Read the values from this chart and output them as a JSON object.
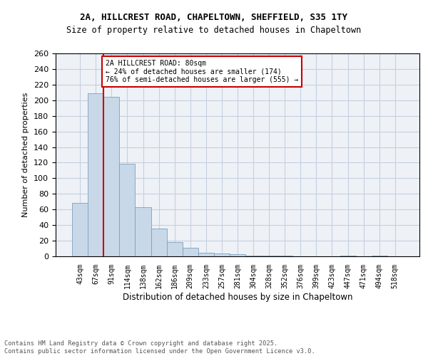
{
  "title_line1": "2A, HILLCREST ROAD, CHAPELTOWN, SHEFFIELD, S35 1TY",
  "title_line2": "Size of property relative to detached houses in Chapeltown",
  "xlabel": "Distribution of detached houses by size in Chapeltown",
  "ylabel": "Number of detached properties",
  "bar_color": "#c8d8e8",
  "bar_edge_color": "#7aa0c0",
  "categories": [
    "43sqm",
    "67sqm",
    "91sqm",
    "114sqm",
    "138sqm",
    "162sqm",
    "186sqm",
    "209sqm",
    "233sqm",
    "257sqm",
    "281sqm",
    "304sqm",
    "328sqm",
    "352sqm",
    "376sqm",
    "399sqm",
    "423sqm",
    "447sqm",
    "471sqm",
    "494sqm",
    "518sqm"
  ],
  "values": [
    68,
    209,
    204,
    119,
    63,
    36,
    18,
    11,
    5,
    4,
    3,
    1,
    1,
    1,
    0,
    0,
    0,
    1,
    0,
    1,
    0
  ],
  "ylim": [
    0,
    260
  ],
  "yticks": [
    0,
    20,
    40,
    60,
    80,
    100,
    120,
    140,
    160,
    180,
    200,
    220,
    240,
    260
  ],
  "vline_x": 1.5,
  "vline_color": "#cc0000",
  "annotation_text": "2A HILLCREST ROAD: 80sqm\n← 24% of detached houses are smaller (174)\n76% of semi-detached houses are larger (555) →",
  "annotation_box_color": "#cc0000",
  "footer_line1": "Contains HM Land Registry data © Crown copyright and database right 2025.",
  "footer_line2": "Contains public sector information licensed under the Open Government Licence v3.0.",
  "bg_color": "#eef2f7",
  "grid_color": "#c5cfe0"
}
